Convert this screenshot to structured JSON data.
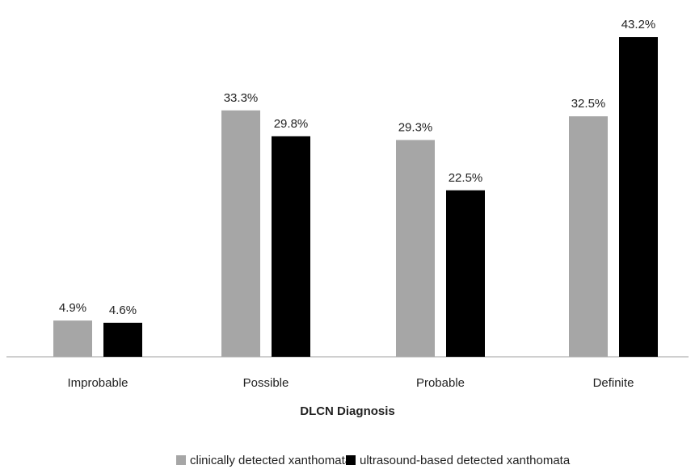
{
  "chart_data": {
    "type": "bar",
    "categories": [
      "Improbable",
      "Possible",
      "Probable",
      "Definite"
    ],
    "series": [
      {
        "name": "clinically detected xanthomata",
        "values": [
          4.9,
          33.3,
          29.3,
          32.5
        ],
        "labels": [
          "4.9%",
          "33.3%",
          "29.3%",
          "32.5%"
        ],
        "color": "#a6a6a6"
      },
      {
        "name": "ultrasound-based detected xanthomata",
        "values": [
          4.6,
          29.8,
          22.5,
          43.2
        ],
        "labels": [
          "4.6%",
          "29.8%",
          "22.5%",
          "43.2%"
        ],
        "color": "#000000"
      }
    ],
    "xlabel": "DLCN Diagnosis",
    "ylabel": "",
    "ylim": [
      0,
      43.2
    ],
    "grid": false,
    "legend_position": "bottom"
  }
}
